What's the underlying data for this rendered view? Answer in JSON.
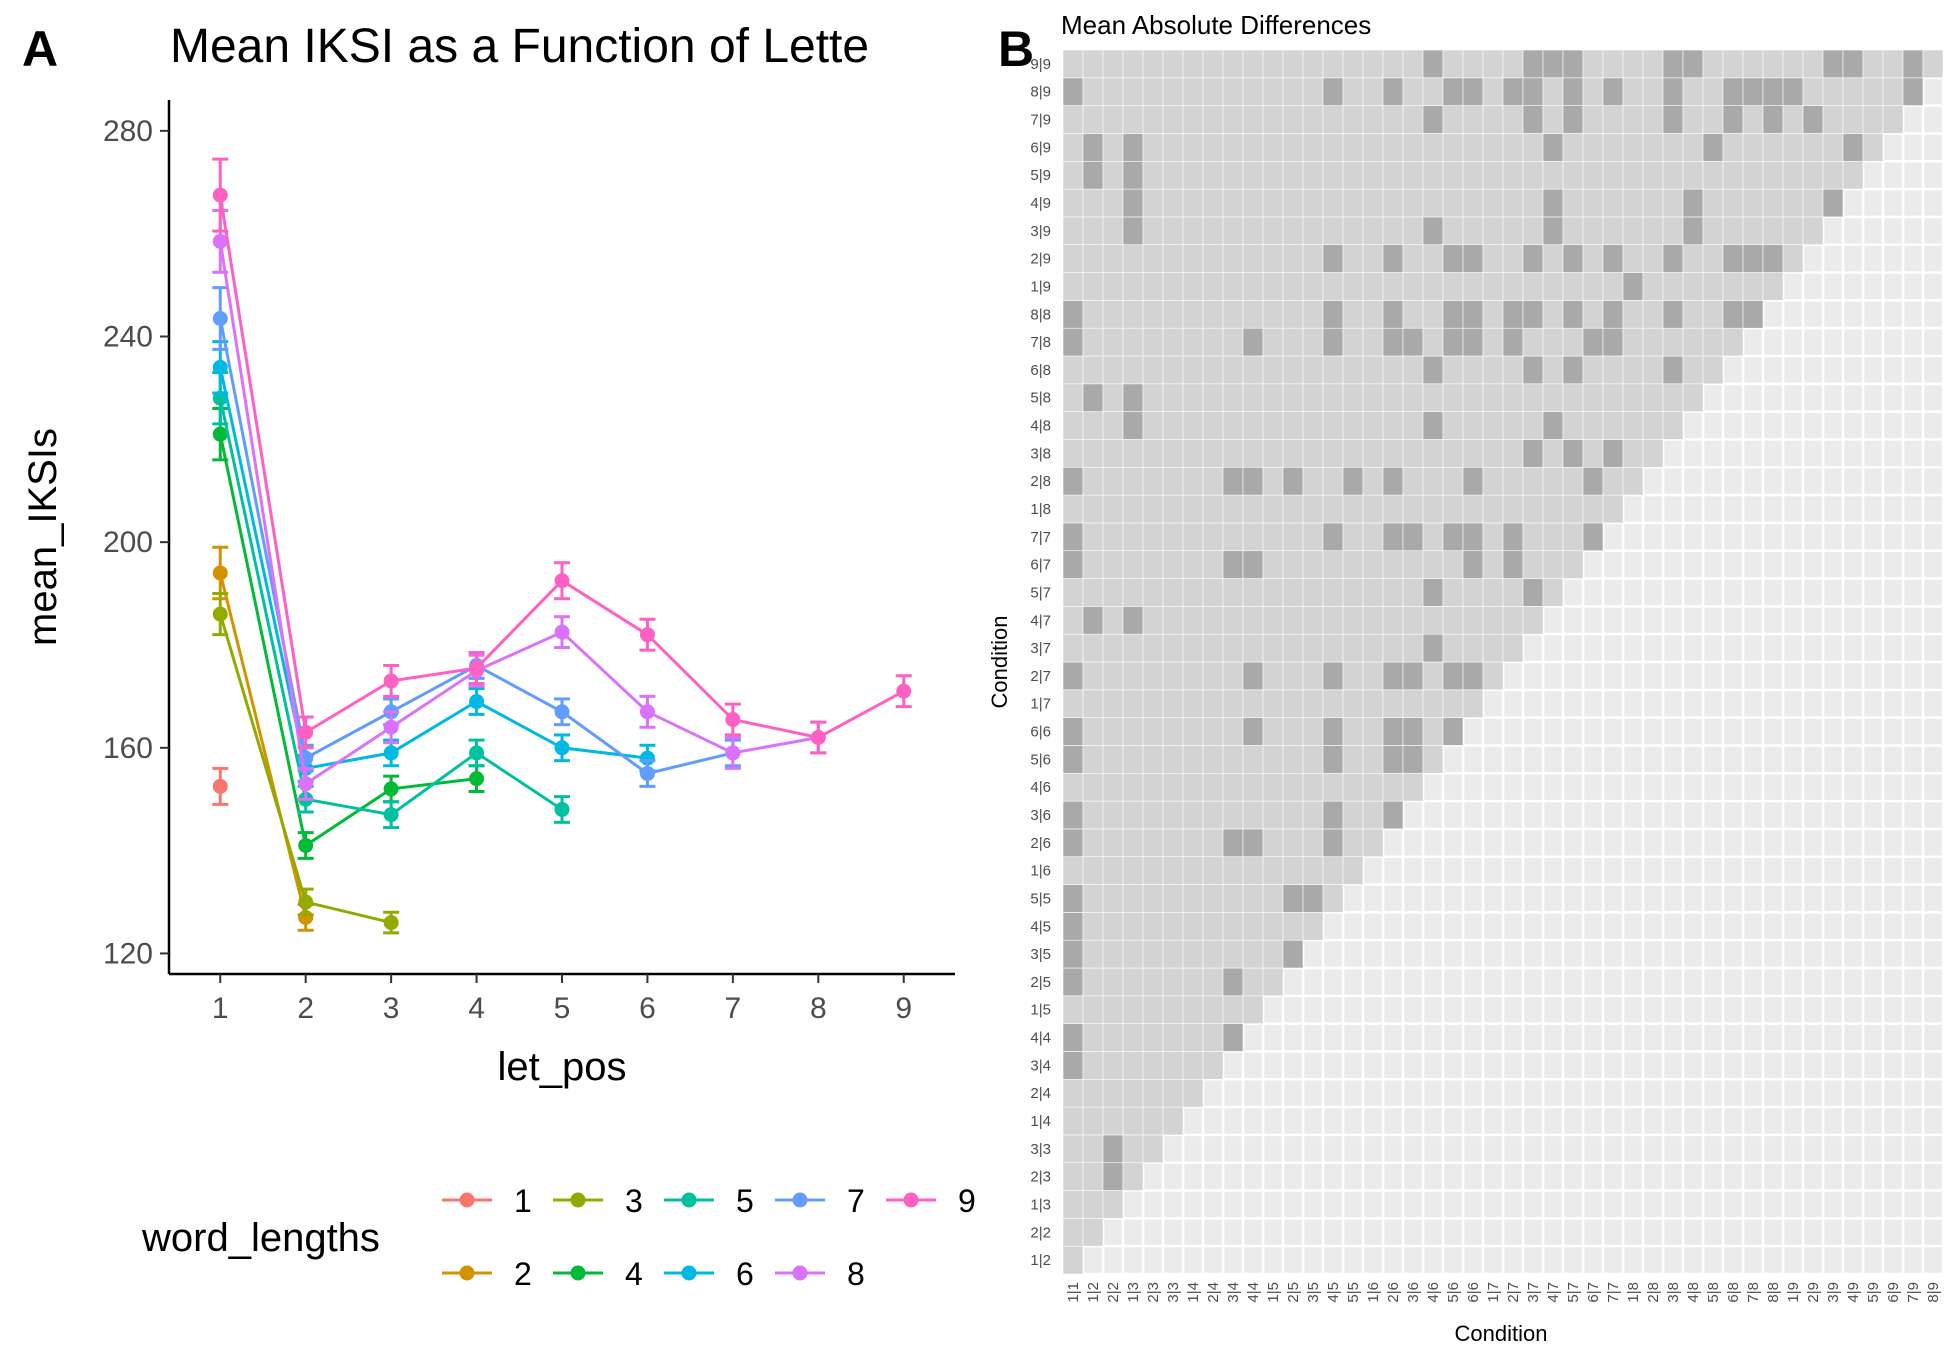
{
  "panels": {
    "a_label": "A",
    "b_label": "B"
  },
  "chart_data": [
    {
      "type": "line",
      "title": "Mean IKSI as a Function of Lette",
      "xlabel": "let_pos",
      "ylabel": "mean_IKSIs",
      "x_ticks": [
        "1",
        "2",
        "3",
        "4",
        "5",
        "6",
        "7",
        "8",
        "9"
      ],
      "y_ticks": [
        "120",
        "160",
        "200",
        "240",
        "280"
      ],
      "xlim": [
        0.4,
        9.6
      ],
      "ylim": [
        116,
        286
      ],
      "grid": false,
      "legend": {
        "title": "word_lengths",
        "position": "bottom",
        "rows": [
          [
            "1",
            "3",
            "5",
            "7",
            "9"
          ],
          [
            "2",
            "4",
            "6",
            "8"
          ]
        ]
      },
      "series": [
        {
          "name": "1",
          "color": "#F8766D",
          "x": [
            1
          ],
          "y": [
            152.5
          ],
          "err": [
            3.5
          ]
        },
        {
          "name": "2",
          "color": "#D39200",
          "x": [
            1,
            2
          ],
          "y": [
            194,
            127
          ],
          "err": [
            5,
            2.5
          ]
        },
        {
          "name": "3",
          "color": "#93AA00",
          "x": [
            1,
            2,
            3
          ],
          "y": [
            186,
            130,
            126
          ],
          "err": [
            4,
            2.5,
            2
          ]
        },
        {
          "name": "4",
          "color": "#00BA38",
          "x": [
            1,
            2,
            3,
            4
          ],
          "y": [
            221,
            141,
            152,
            154
          ],
          "err": [
            5,
            2.5,
            2.5,
            2.5
          ]
        },
        {
          "name": "5",
          "color": "#00C19F",
          "x": [
            1,
            2,
            3,
            4,
            5
          ],
          "y": [
            228,
            150,
            147,
            159,
            148
          ],
          "err": [
            5,
            2.5,
            2.5,
            2.5,
            2.5
          ]
        },
        {
          "name": "6",
          "color": "#00B9E3",
          "x": [
            1,
            2,
            3,
            4,
            5,
            6
          ],
          "y": [
            234,
            156,
            159,
            169,
            160,
            158
          ],
          "err": [
            5,
            2.5,
            2.5,
            2.5,
            2.5,
            2.5
          ]
        },
        {
          "name": "7",
          "color": "#619CFF",
          "x": [
            1,
            2,
            3,
            4,
            5,
            6,
            7
          ],
          "y": [
            243.5,
            158,
            167,
            176,
            167,
            155,
            159
          ],
          "err": [
            6,
            2.5,
            2.5,
            2.5,
            2.5,
            2.5,
            2.5
          ]
        },
        {
          "name": "8",
          "color": "#DB72FB",
          "x": [
            1,
            2,
            3,
            4,
            5,
            6,
            7,
            8
          ],
          "y": [
            258.5,
            153,
            164,
            175,
            182.5,
            167,
            159,
            162
          ],
          "err": [
            6,
            3,
            3,
            3,
            3,
            3,
            3,
            3
          ]
        },
        {
          "name": "9",
          "color": "#FF61C3",
          "x": [
            1,
            2,
            3,
            4,
            5,
            6,
            7,
            8,
            9
          ],
          "y": [
            267.5,
            163,
            173,
            175.5,
            192.5,
            182,
            165.5,
            162,
            171
          ],
          "err": [
            7,
            3,
            3,
            3,
            3.5,
            3,
            3,
            3,
            3
          ]
        }
      ]
    },
    {
      "type": "heatmap",
      "title": "Mean Absolute Differences",
      "xlabel": "Condition",
      "ylabel": "Condition",
      "x_categories": [
        "1|1",
        "1|2",
        "2|2",
        "1|3",
        "2|3",
        "3|3",
        "1|4",
        "2|4",
        "3|4",
        "4|4",
        "1|5",
        "2|5",
        "3|5",
        "4|5",
        "5|5",
        "1|6",
        "2|6",
        "3|6",
        "4|6",
        "5|6",
        "6|6",
        "1|7",
        "2|7",
        "3|7",
        "4|7",
        "5|7",
        "6|7",
        "7|7",
        "1|8",
        "2|8",
        "3|8",
        "4|8",
        "5|8",
        "6|8",
        "7|8",
        "8|8",
        "1|9",
        "2|9",
        "3|9",
        "4|9",
        "5|9",
        "6|9",
        "7|9",
        "8|9"
      ],
      "y_categories": [
        "1|2",
        "2|2",
        "1|3",
        "2|3",
        "3|3",
        "1|4",
        "2|4",
        "3|4",
        "4|4",
        "1|5",
        "2|5",
        "3|5",
        "4|5",
        "5|5",
        "1|6",
        "2|6",
        "3|6",
        "4|6",
        "5|6",
        "6|6",
        "1|7",
        "2|7",
        "3|7",
        "4|7",
        "5|7",
        "6|7",
        "7|7",
        "1|8",
        "2|8",
        "3|8",
        "4|8",
        "5|8",
        "6|8",
        "7|8",
        "8|8",
        "1|9",
        "2|9",
        "3|9",
        "4|9",
        "5|9",
        "6|9",
        "7|9",
        "8|9",
        "9|9"
      ],
      "colors": {
        "light": "#D3D3D3",
        "dark": "#A9A9A9",
        "background": "#EBEBEB"
      },
      "dark_cells": {
        "1|2": [],
        "2|2": [],
        "1|3": [],
        "2|3": [
          2
        ],
        "3|3": [
          2
        ],
        "1|4": [],
        "2|4": [],
        "3|4": [
          0
        ],
        "4|4": [
          0,
          8
        ],
        "1|5": [],
        "2|5": [
          0,
          8
        ],
        "3|5": [
          0,
          11
        ],
        "4|5": [
          0
        ],
        "5|5": [
          0,
          11,
          12
        ],
        "1|6": [],
        "2|6": [
          0,
          8,
          9,
          13
        ],
        "3|6": [
          0,
          13,
          16
        ],
        "4|6": [],
        "5|6": [
          0,
          13,
          16,
          17
        ],
        "6|6": [
          0,
          9,
          13,
          16,
          17,
          19
        ],
        "1|7": [],
        "2|7": [
          0,
          9,
          13,
          16,
          17,
          19,
          20
        ],
        "3|7": [
          18
        ],
        "4|7": [
          1,
          3
        ],
        "5|7": [
          18,
          23
        ],
        "6|7": [
          0,
          8,
          9,
          20,
          22
        ],
        "7|7": [
          0,
          13,
          16,
          17,
          19,
          20,
          22,
          26
        ],
        "1|8": [],
        "2|8": [
          0,
          8,
          9,
          11,
          14,
          16,
          20,
          26
        ],
        "3|8": [
          23,
          25,
          27
        ],
        "4|8": [
          3,
          18,
          24
        ],
        "5|8": [
          1,
          3
        ],
        "6|8": [
          18,
          23,
          25,
          30
        ],
        "7|8": [
          0,
          9,
          13,
          16,
          17,
          19,
          20,
          22,
          26,
          27
        ],
        "8|8": [
          0,
          13,
          16,
          19,
          20,
          22,
          23,
          25,
          27,
          30,
          33,
          34
        ],
        "1|9": [
          28
        ],
        "2|9": [
          13,
          16,
          19,
          20,
          23,
          25,
          27,
          30,
          33,
          34,
          35
        ],
        "3|9": [
          3,
          18,
          24,
          31
        ],
        "4|9": [
          3,
          24,
          31,
          38
        ],
        "5|9": [
          1,
          3
        ],
        "6|9": [
          1,
          3,
          24,
          32,
          39
        ],
        "7|9": [
          18,
          23,
          25,
          30,
          33,
          35,
          37
        ],
        "8|9": [
          0,
          13,
          16,
          19,
          20,
          22,
          23,
          25,
          27,
          30,
          33,
          34,
          35,
          36,
          42
        ],
        "9|9": [
          18,
          23,
          24,
          25,
          30,
          31,
          38,
          39,
          42
        ]
      }
    }
  ]
}
